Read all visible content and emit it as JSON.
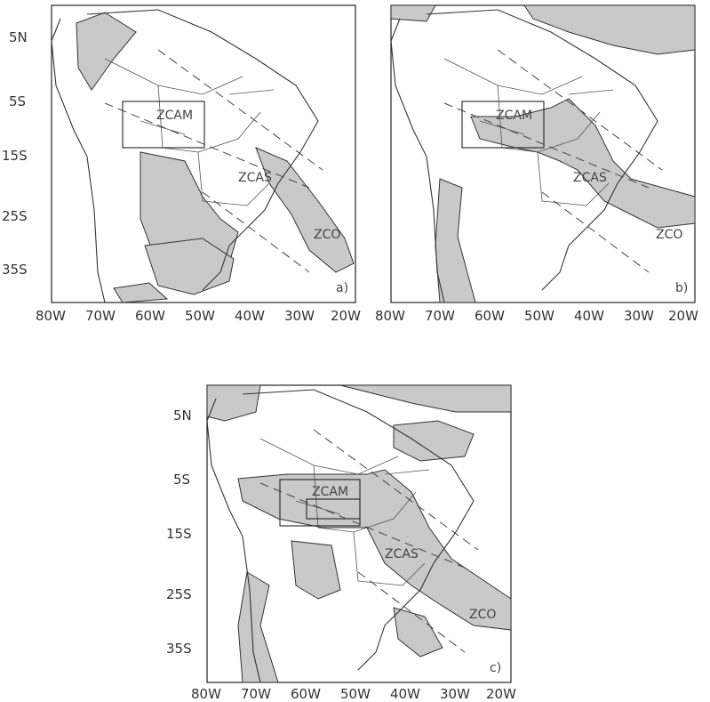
{
  "panels": [
    {
      "id": "a",
      "tag": "a)",
      "lon_labels": [
        "80W",
        "70W",
        "60W",
        "50W",
        "40W",
        "30W",
        "20W"
      ],
      "lat_labels": [
        "5N",
        "5S",
        "15S",
        "25S",
        "35S"
      ],
      "zone_labels": {
        "zcam": "ZCAM",
        "zcas": "ZCAS",
        "zco": "ZCO"
      }
    },
    {
      "id": "b",
      "tag": "b)",
      "lon_labels": [
        "80W",
        "70W",
        "60W",
        "50W",
        "40W",
        "30W",
        "20W"
      ],
      "lat_labels": [],
      "zone_labels": {
        "zcam": "ZCAM",
        "zcas": "ZCAS",
        "zco": "ZCO"
      }
    },
    {
      "id": "c",
      "tag": "c)",
      "lon_labels": [
        "80W",
        "70W",
        "60W",
        "50W",
        "40W",
        "30W",
        "20W"
      ],
      "lat_labels": [
        "5N",
        "5S",
        "15S",
        "25S",
        "35S"
      ],
      "zone_labels": {
        "zcam": "ZCAM",
        "zcas": "ZCAS",
        "zco": "ZCO"
      }
    }
  ],
  "colors": {
    "shade": "#c9c9c9",
    "line": "#333333",
    "background": "#ffffff"
  }
}
